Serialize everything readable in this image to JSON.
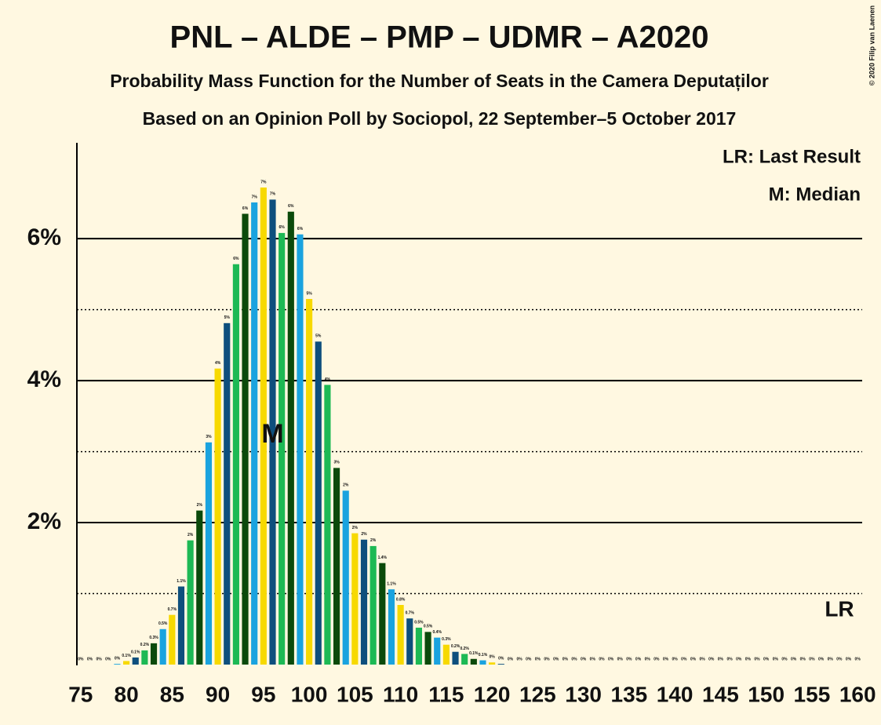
{
  "chart_data": {
    "type": "bar",
    "title": "PNL – ALDE – PMP – UDMR – A2020",
    "subtitle": "Probability Mass Function for the Number of Seats in the Camera Deputaților",
    "subtitle2": "Based on an Opinion Poll by Sociopol, 22 September–5 October 2017",
    "legend_last_result": "LR: Last Result",
    "legend_median": "M: Median",
    "last_result_label": "LR",
    "median": {
      "x": 96,
      "label": "M"
    },
    "copyright": "© 2020 Filip van Laenen",
    "x": [
      75,
      76,
      77,
      78,
      79,
      80,
      81,
      82,
      83,
      84,
      85,
      86,
      87,
      88,
      89,
      90,
      91,
      92,
      93,
      94,
      95,
      96,
      97,
      98,
      99,
      100,
      101,
      102,
      103,
      104,
      105,
      106,
      107,
      108,
      109,
      110,
      111,
      112,
      113,
      114,
      115,
      116,
      117,
      118,
      119,
      120,
      121,
      122,
      123,
      124,
      125,
      126,
      127,
      128,
      129,
      130,
      131,
      132,
      133,
      134,
      135,
      136,
      137,
      138,
      139,
      140,
      141,
      142,
      143,
      144,
      145,
      146,
      147,
      148,
      149,
      150,
      151,
      152,
      153,
      154,
      155,
      156,
      157,
      158,
      159,
      160
    ],
    "values": [
      0,
      0,
      0,
      0,
      0.01,
      0.05,
      0.1,
      0.2,
      0.3,
      0.5,
      0.7,
      1.1,
      1.75,
      2.17,
      3.13,
      4.17,
      4.81,
      5.64,
      6.35,
      6.51,
      6.72,
      6.55,
      6.08,
      6.38,
      6.06,
      5.15,
      4.55,
      3.94,
      2.77,
      2.45,
      1.85,
      1.76,
      1.67,
      1.43,
      1.06,
      0.84,
      0.65,
      0.52,
      0.46,
      0.38,
      0.28,
      0.18,
      0.15,
      0.08,
      0.06,
      0.03,
      0.01,
      0,
      0,
      0,
      0,
      0,
      0,
      0,
      0,
      0,
      0,
      0,
      0,
      0,
      0,
      0,
      0,
      0,
      0,
      0,
      0,
      0,
      0,
      0,
      0,
      0,
      0,
      0,
      0,
      0,
      0,
      0,
      0,
      0,
      0,
      0,
      0,
      0,
      0,
      0
    ],
    "value_labels": [
      "0%",
      "0%",
      "0%",
      "0%",
      "0%",
      "0.1%",
      "0.1%",
      "0.2%",
      "0.3%",
      "0.5%",
      "0.7%",
      "1.1%",
      "2%",
      "2%",
      "3%",
      "4%",
      "5%",
      "6%",
      "6%",
      "7%",
      "7%",
      "7%",
      "6%",
      "6%",
      "6%",
      "5%",
      "5%",
      "4%",
      "3%",
      "2%",
      "2%",
      "2%",
      "2%",
      "1.4%",
      "1.1%",
      "0.8%",
      "0.7%",
      "0.5%",
      "0.5%",
      "0.4%",
      "0.3%",
      "0.2%",
      "0.2%",
      "0.1%",
      "0.1%",
      "0%",
      "0%",
      "0%",
      "0%",
      "0%",
      "0%",
      "0%",
      "0%",
      "0%",
      "0%",
      "0%",
      "0%",
      "0%",
      "0%",
      "0%",
      "0%",
      "0%",
      "0%",
      "0%",
      "0%",
      "0%",
      "0%",
      "0%",
      "0%",
      "0%",
      "0%",
      "0%",
      "0%",
      "0%",
      "0%",
      "0%",
      "0%",
      "0%",
      "0%",
      "0%",
      "0%",
      "0%",
      "0%",
      "0%",
      "0%",
      "0%"
    ],
    "colors": [
      "#f7d900",
      "#0e4f7d",
      "#1db954",
      "#0b4a0b",
      "#1aa3df"
    ],
    "xlim": [
      74.5,
      160.5
    ],
    "xticks": [
      75,
      80,
      85,
      90,
      95,
      100,
      105,
      110,
      115,
      120,
      125,
      130,
      135,
      140,
      145,
      150,
      155,
      160
    ],
    "ylim": [
      0,
      7.35
    ],
    "yticks": [
      {
        "value": 2,
        "label": "2%"
      },
      {
        "value": 4,
        "label": "4%"
      },
      {
        "value": 6,
        "label": "6%"
      }
    ],
    "minor_yticks": [
      1,
      3,
      5
    ],
    "grid": true
  }
}
